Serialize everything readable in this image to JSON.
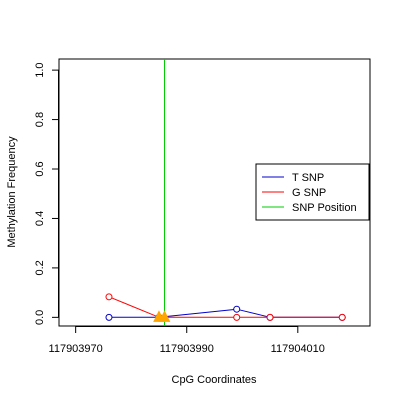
{
  "chart_data": {
    "type": "line",
    "title": "",
    "xlabel": "CpG Coordinates",
    "ylabel": "Methylation Frequency",
    "xlim": [
      117903967,
      117904023
    ],
    "ylim": [
      -0.035,
      1.045
    ],
    "x_ticks": [
      117903970,
      117903990,
      117904010
    ],
    "x_tick_labels": [
      "117903970",
      "117903990",
      "117904010"
    ],
    "y_ticks": [
      0.0,
      0.2,
      0.4,
      0.6,
      0.8,
      1.0
    ],
    "y_tick_labels": [
      "0.0",
      "0.2",
      "0.4",
      "0.6",
      "0.8",
      "1.0"
    ],
    "grid": false,
    "legend_position": "right",
    "series": [
      {
        "name": "T SNP",
        "color": "#0000cc",
        "x": [
          117903976,
          117903985,
          117903999,
          117904005,
          117904018
        ],
        "y": [
          0.0,
          0.0,
          0.033,
          0.0,
          0.0
        ]
      },
      {
        "name": "G SNP",
        "color": "#ff0000",
        "x": [
          117903976,
          117903985,
          117903999,
          117904005,
          117904018
        ],
        "y": [
          0.083,
          0.0,
          0.0,
          0.0,
          0.0
        ]
      }
    ],
    "snp": {
      "name": "SNP Position",
      "color": "#00cc00",
      "x": 117903986,
      "marker_color": "#ffa500",
      "markers_x": [
        117903985,
        117903986
      ]
    }
  }
}
